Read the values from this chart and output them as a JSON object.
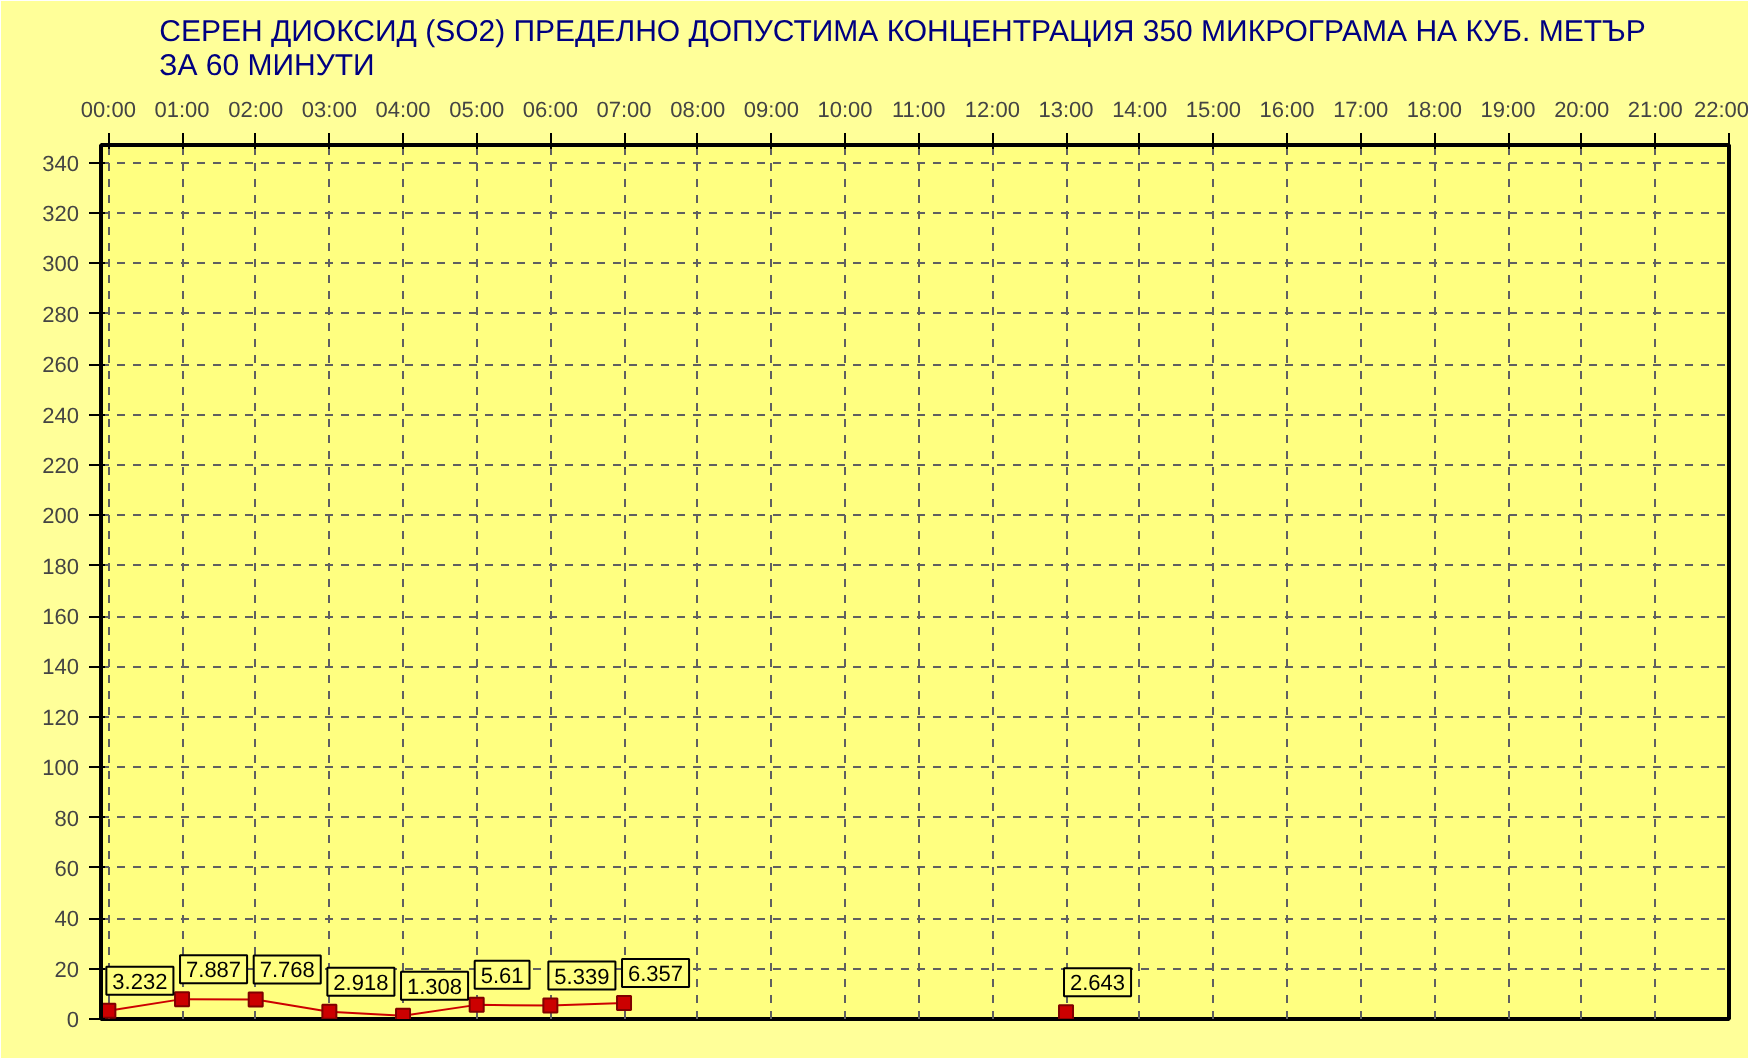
{
  "chart_data": {
    "type": "line",
    "title": "СЕРЕН ДИОКСИД  (SO2)  ПРЕДЕЛНО ДОПУСТИМА КОНЦЕНТРАЦИЯ 350 МИКРОГРАМА  НА КУБ. МЕТЪР\nЗА 60 МИНУТИ",
    "x": [
      0,
      1,
      2,
      3,
      4,
      5,
      6,
      7,
      8,
      9,
      10,
      11,
      12,
      13
    ],
    "series": [
      {
        "color": "#cc0000",
        "values": [
          3.232,
          7.887,
          7.768,
          2.918,
          1.308,
          5.61,
          5.339,
          6.357,
          null,
          null,
          null,
          null,
          null,
          2.643
        ]
      }
    ],
    "data_labels": true,
    "marker": "square",
    "line_style": "solid",
    "grid": true,
    "xlim": [
      -0.1,
      22
    ],
    "ylim": [
      0,
      347
    ],
    "xticks": [
      {
        "value": 0,
        "label": "00:00"
      },
      {
        "value": 1,
        "label": "01:00"
      },
      {
        "value": 2,
        "label": "02:00"
      },
      {
        "value": 3,
        "label": "03:00"
      },
      {
        "value": 4,
        "label": "04:00"
      },
      {
        "value": 5,
        "label": "05:00"
      },
      {
        "value": 6,
        "label": "06:00"
      },
      {
        "value": 7,
        "label": "07:00"
      },
      {
        "value": 8,
        "label": "08:00"
      },
      {
        "value": 9,
        "label": "09:00"
      },
      {
        "value": 10,
        "label": "10:00"
      },
      {
        "value": 11,
        "label": "11:00"
      },
      {
        "value": 12,
        "label": "12:00"
      },
      {
        "value": 13,
        "label": "13:00"
      },
      {
        "value": 14,
        "label": "14:00"
      },
      {
        "value": 15,
        "label": "15:00"
      },
      {
        "value": 16,
        "label": "16:00"
      },
      {
        "value": 17,
        "label": "17:00"
      },
      {
        "value": 18,
        "label": "18:00"
      },
      {
        "value": 19,
        "label": "19:00"
      },
      {
        "value": 20,
        "label": "20:00"
      },
      {
        "value": 21,
        "label": "21:00"
      },
      {
        "value": 22,
        "label": "22:00"
      }
    ],
    "yticks": [
      0,
      20,
      40,
      60,
      80,
      100,
      120,
      140,
      160,
      180,
      200,
      220,
      240,
      260,
      280,
      300,
      320,
      340
    ]
  }
}
